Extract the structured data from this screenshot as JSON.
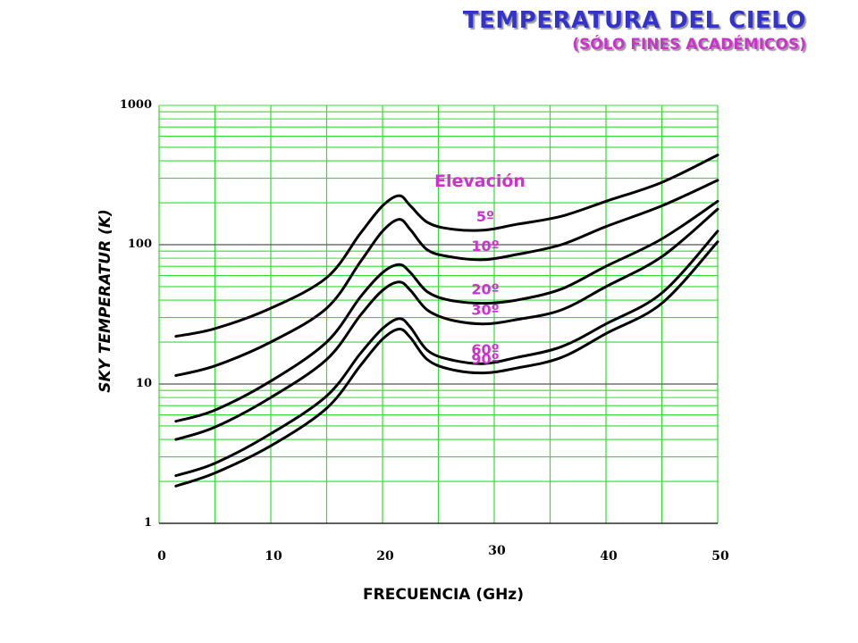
{
  "header": {
    "title": "TEMPERATURA DEL CIELO",
    "subtitle": "(SÓLO FINES ACADÉMICOS)"
  },
  "colors": {
    "title": "#3333cc",
    "subtitle": "#cc33cc",
    "grid": "#33dd33",
    "decade_line": "#555555",
    "curve": "#000000",
    "label": "#cc33cc"
  },
  "chart_data": {
    "type": "line",
    "title": "TEMPERATURA DEL CIELO",
    "subtitle": "(SÓLO FINES ACADÉMICOS)",
    "xlabel": "FRECUENCIA (GHz)",
    "ylabel": "SKY TEMPERATUR (K)",
    "xlim": [
      0,
      50
    ],
    "ylim": [
      1,
      1000
    ],
    "yscale": "log",
    "grid": true,
    "x_ticks": [
      "0",
      "10",
      "20",
      "30",
      "40",
      "50"
    ],
    "y_ticks": [
      "1",
      "10",
      "100",
      "1000"
    ],
    "legend_title": "Elevación",
    "x": [
      1.5,
      5,
      10,
      15,
      18,
      20,
      21.5,
      22.5,
      24,
      26,
      29,
      32,
      36,
      40,
      45,
      50
    ],
    "series": [
      {
        "name": "5º",
        "values": [
          22,
          25,
          35,
          58,
          120,
          190,
          225,
          190,
          145,
          130,
          127,
          140,
          160,
          205,
          280,
          440
        ]
      },
      {
        "name": "10º",
        "values": [
          11.5,
          13.5,
          20,
          35,
          75,
          125,
          152,
          128,
          92,
          82,
          78,
          85,
          100,
          135,
          190,
          290
        ]
      },
      {
        "name": "20º",
        "values": [
          5.4,
          6.5,
          10.5,
          20,
          42,
          63,
          72,
          63,
          46,
          40,
          38,
          40,
          48,
          70,
          110,
          205
        ]
      },
      {
        "name": "30º",
        "values": [
          4,
          4.9,
          8,
          15,
          31,
          47,
          54,
          47,
          34,
          29,
          27,
          29,
          34,
          50,
          82,
          180
        ]
      },
      {
        "name": "60º",
        "values": [
          2.2,
          2.7,
          4.4,
          8.2,
          16.5,
          25,
          29.5,
          25.5,
          17.5,
          15,
          14,
          15.5,
          18.5,
          27,
          45,
          125
        ]
      },
      {
        "name": "90º",
        "values": [
          1.85,
          2.3,
          3.6,
          6.7,
          13.5,
          21,
          24.8,
          21.5,
          15,
          12.8,
          12,
          13,
          15.5,
          23,
          38,
          105
        ]
      }
    ]
  }
}
